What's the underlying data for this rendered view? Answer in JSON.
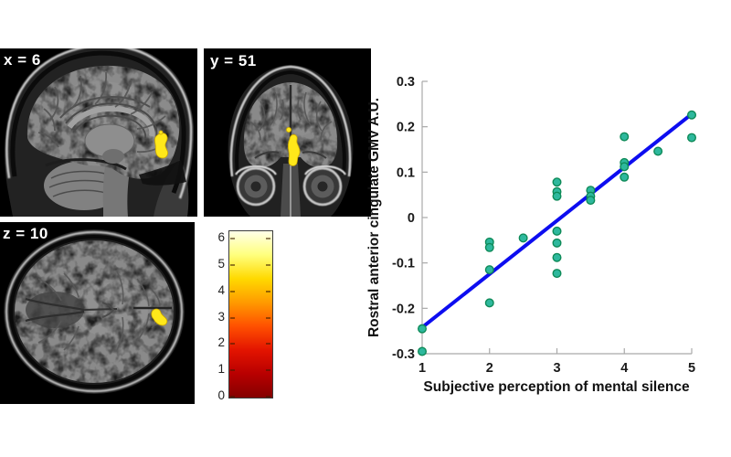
{
  "figure": {
    "background": "#ffffff",
    "activation_color": "#ffe81a",
    "panels": [
      {
        "id": "sagittal",
        "label": "x = 6"
      },
      {
        "id": "coronal",
        "label": "y = 51"
      },
      {
        "id": "axial",
        "label": "z = 10"
      }
    ],
    "colorbar": {
      "min": 0,
      "max": 6,
      "ticks": [
        0,
        1,
        2,
        3,
        4,
        5,
        6
      ],
      "tick_labels": [
        "0",
        "1",
        "2",
        "3",
        "4",
        "5",
        "6"
      ],
      "colors": [
        "#840000",
        "#b80000",
        "#e31400",
        "#ff5000",
        "#ff9a00",
        "#ffd900",
        "#ffff7d",
        "#ffffe8"
      ]
    }
  },
  "chart_data": {
    "type": "scatter",
    "title": "",
    "xlabel": "Subjective perception of mental silence",
    "ylabel": "Rostral anterior cingulate GMV A.U.",
    "xlim": [
      1,
      5
    ],
    "ylim": [
      -0.3,
      0.3
    ],
    "xticks": [
      1,
      2,
      3,
      4,
      5
    ],
    "xtick_labels": [
      "1",
      "2",
      "3",
      "4",
      "5"
    ],
    "yticks": [
      -0.3,
      -0.2,
      -0.1,
      0,
      0.1,
      0.2,
      0.3
    ],
    "ytick_labels": [
      "-0.3",
      "-0.2",
      "-0.1",
      "0",
      "0.1",
      "0.2",
      "0.3"
    ],
    "grid": false,
    "legend": null,
    "axis_color": "#a9a9a9",
    "marker": {
      "fill": "#2eb89d",
      "edge": "#0e8a58",
      "radius": 4.3
    },
    "points": [
      [
        1,
        -0.245
      ],
      [
        1,
        -0.295
      ],
      [
        2,
        -0.054
      ],
      [
        2,
        -0.066
      ],
      [
        2,
        -0.115
      ],
      [
        2,
        -0.188
      ],
      [
        2.5,
        -0.045
      ],
      [
        3,
        0.078
      ],
      [
        3,
        0.057
      ],
      [
        3,
        0.047
      ],
      [
        3,
        -0.03
      ],
      [
        3,
        -0.056
      ],
      [
        3,
        -0.088
      ],
      [
        3,
        -0.123
      ],
      [
        3.5,
        0.06
      ],
      [
        3.5,
        0.047
      ],
      [
        3.5,
        0.038
      ],
      [
        4,
        0.178
      ],
      [
        4,
        0.121
      ],
      [
        4,
        0.112
      ],
      [
        4,
        0.089
      ],
      [
        4.5,
        0.146
      ],
      [
        5,
        0.226
      ],
      [
        5,
        0.176
      ]
    ],
    "fit_line": {
      "x1": 1,
      "y1": -0.242,
      "x2": 5,
      "y2": 0.228,
      "color": "#0d0df0",
      "width": 4
    }
  }
}
